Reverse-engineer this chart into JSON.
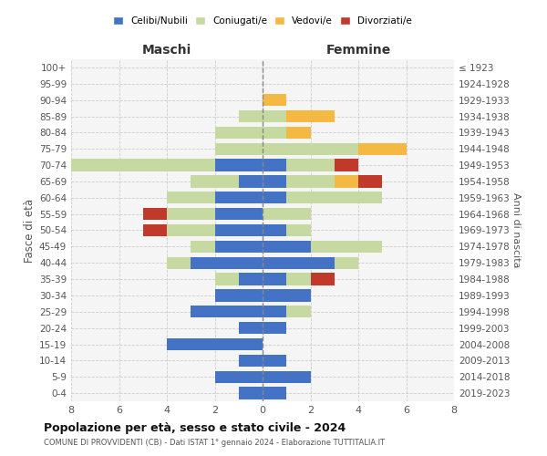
{
  "age_groups": [
    "0-4",
    "5-9",
    "10-14",
    "15-19",
    "20-24",
    "25-29",
    "30-34",
    "35-39",
    "40-44",
    "45-49",
    "50-54",
    "55-59",
    "60-64",
    "65-69",
    "70-74",
    "75-79",
    "80-84",
    "85-89",
    "90-94",
    "95-99",
    "100+"
  ],
  "birth_years": [
    "2019-2023",
    "2014-2018",
    "2009-2013",
    "2004-2008",
    "1999-2003",
    "1994-1998",
    "1989-1993",
    "1984-1988",
    "1979-1983",
    "1974-1978",
    "1969-1973",
    "1964-1968",
    "1959-1963",
    "1954-1958",
    "1949-1953",
    "1944-1948",
    "1939-1943",
    "1934-1938",
    "1929-1933",
    "1924-1928",
    "≤ 1923"
  ],
  "maschi": {
    "celibi": [
      1,
      2,
      1,
      4,
      1,
      3,
      2,
      1,
      3,
      2,
      2,
      2,
      2,
      1,
      2,
      0,
      0,
      0,
      0,
      0,
      0
    ],
    "coniugati": [
      0,
      0,
      0,
      0,
      0,
      0,
      0,
      1,
      1,
      1,
      2,
      2,
      2,
      2,
      6,
      2,
      2,
      1,
      0,
      0,
      0
    ],
    "vedovi": [
      0,
      0,
      0,
      0,
      0,
      0,
      0,
      0,
      0,
      0,
      0,
      0,
      0,
      0,
      0,
      0,
      0,
      0,
      0,
      0,
      0
    ],
    "divorziati": [
      0,
      0,
      0,
      0,
      0,
      0,
      0,
      0,
      0,
      0,
      1,
      1,
      0,
      0,
      0,
      0,
      0,
      0,
      0,
      0,
      0
    ]
  },
  "femmine": {
    "nubili": [
      1,
      2,
      1,
      0,
      1,
      1,
      2,
      1,
      3,
      2,
      1,
      0,
      1,
      1,
      1,
      0,
      0,
      0,
      0,
      0,
      0
    ],
    "coniugate": [
      0,
      0,
      0,
      0,
      0,
      1,
      0,
      1,
      1,
      3,
      1,
      2,
      4,
      2,
      2,
      4,
      1,
      1,
      0,
      0,
      0
    ],
    "vedove": [
      0,
      0,
      0,
      0,
      0,
      0,
      0,
      0,
      0,
      0,
      0,
      0,
      0,
      1,
      0,
      2,
      1,
      2,
      1,
      0,
      0
    ],
    "divorziate": [
      0,
      0,
      0,
      0,
      0,
      0,
      0,
      1,
      0,
      0,
      0,
      0,
      0,
      1,
      1,
      0,
      0,
      0,
      0,
      0,
      0
    ]
  },
  "color_celibi": "#4472c4",
  "color_coniugati": "#c6d9a0",
  "color_vedovi": "#f4b942",
  "color_divorziati": "#c0392b",
  "xlim": 8,
  "title": "Popolazione per età, sesso e stato civile - 2024",
  "subtitle": "COMUNE DI PROVVIDENTI (CB) - Dati ISTAT 1° gennaio 2024 - Elaborazione TUTTITALIA.IT",
  "ylabel_left": "Fasce di età",
  "ylabel_right": "Anni di nascita",
  "xlabel_maschi": "Maschi",
  "xlabel_femmine": "Femmine",
  "bg_color": "#f5f5f5"
}
